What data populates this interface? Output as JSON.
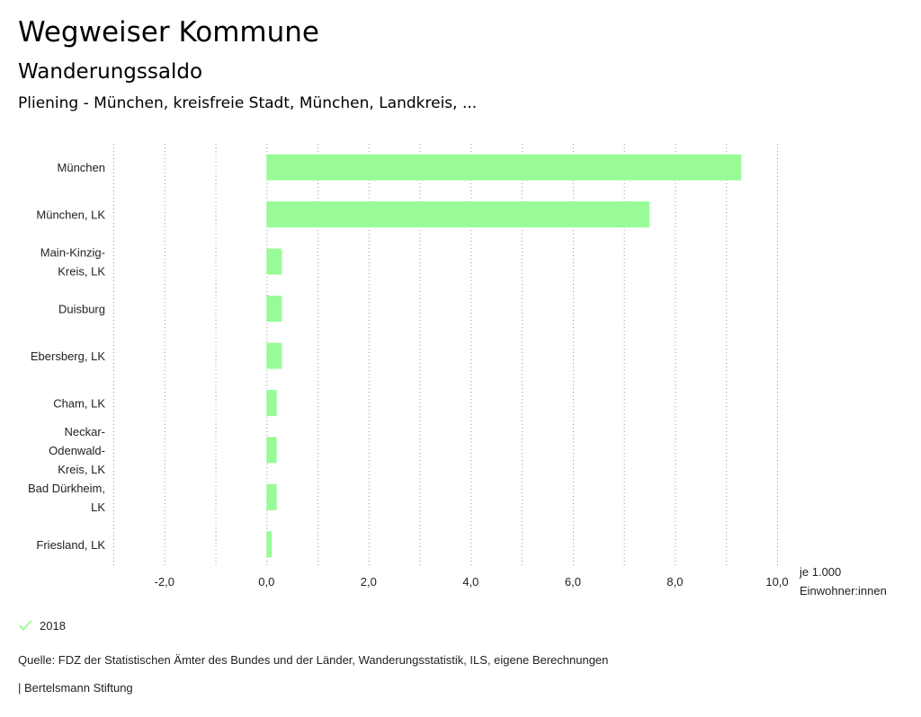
{
  "header": {
    "title": "Wegweiser Kommune",
    "subtitle": "Wanderungssaldo",
    "region": "Pliening - München, kreisfreie Stadt, München, Landkreis, ..."
  },
  "chart_data": {
    "type": "bar",
    "orientation": "horizontal",
    "categories": [
      [
        "München"
      ],
      [
        "München, LK"
      ],
      [
        "Main-Kinzig-",
        "Kreis, LK"
      ],
      [
        "Duisburg"
      ],
      [
        "Ebersberg, LK"
      ],
      [
        "Cham, LK"
      ],
      [
        "Neckar-",
        "Odenwald-",
        "Kreis, LK"
      ],
      [
        "Bad Dürkheim,",
        "LK"
      ],
      [
        "Friesland, LK"
      ]
    ],
    "series": [
      {
        "name": "2018",
        "color": "#98fb98",
        "values": [
          9.3,
          7.5,
          0.3,
          0.3,
          0.3,
          0.2,
          0.2,
          0.2,
          0.1
        ]
      }
    ],
    "xlim": [
      -3.0,
      10.0
    ],
    "xticks": [
      -2,
      0,
      2,
      4,
      6,
      8,
      10
    ],
    "tick_labels": [
      "-2,0",
      "0,0",
      "2,0",
      "4,0",
      "6,0",
      "8,0",
      "10,0"
    ],
    "unit_label": [
      "je 1.000",
      "Einwohner:innen"
    ],
    "grid": "vertical-dotted"
  },
  "legend": {
    "label": "2018",
    "color": "#98fb98"
  },
  "footer": {
    "source": "Quelle: FDZ der Statistischen Ämter des Bundes und der Länder, Wanderungsstatistik, ILS, eigene Berechnungen",
    "credit": "| Bertelsmann Stiftung"
  }
}
